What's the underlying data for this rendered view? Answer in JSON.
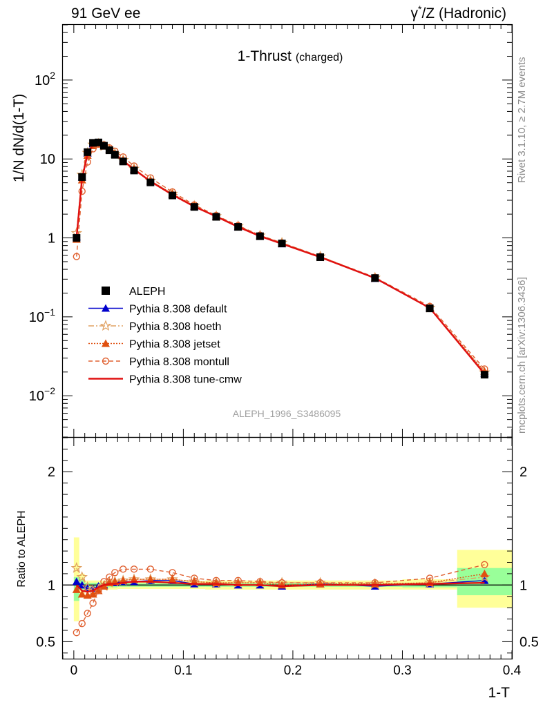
{
  "header": {
    "left": "91 GeV ee",
    "right_prefix": "γ",
    "right_sup": "*",
    "right_suffix": "/Z (Hadronic)"
  },
  "side_labels": {
    "top": "Rivet 3.1.10, ≥ 2.7M events",
    "bottom": "mcplots.cern.ch [arXiv:1306.3436]"
  },
  "chart_data": {
    "type": "line",
    "title": "1-Thrust",
    "title_suffix": "(charged)",
    "analysis_id": "ALEPH_1996_S3486095",
    "xlabel": "1-T",
    "ylabel": "1/N dN/d(1-T)",
    "ratio_ylabel": "Ratio to ALEPH",
    "xlim": [
      -0.01,
      0.4
    ],
    "ylim": [
      0.003,
      500
    ],
    "ylog": true,
    "ratio_ylim": [
      0.35,
      2.3
    ],
    "x_ticks": [
      "0",
      "0.1",
      "0.2",
      "0.3",
      "0.4"
    ],
    "y_ticks": [
      {
        "value": 0.01,
        "base": "10",
        "exp": "−2"
      },
      {
        "value": 0.1,
        "base": "10",
        "exp": "−1"
      },
      {
        "value": 1,
        "base": "1",
        "exp": ""
      },
      {
        "value": 10,
        "base": "10",
        "exp": ""
      },
      {
        "value": 100,
        "base": "10",
        "exp": "2"
      }
    ],
    "ratio_ticks": [
      "0.5",
      "1",
      "2"
    ],
    "legend_position": "middle-left",
    "x": [
      0.0025,
      0.0075,
      0.0125,
      0.0175,
      0.0225,
      0.0275,
      0.0325,
      0.0375,
      0.045,
      0.055,
      0.07,
      0.09,
      0.11,
      0.13,
      0.15,
      0.17,
      0.19,
      0.225,
      0.275,
      0.325,
      0.375
    ],
    "bands": [
      {
        "x0": 0.0,
        "x1": 0.005,
        "green": [
          0.86,
          1.07
        ],
        "yellow": [
          0.68,
          1.42
        ]
      },
      {
        "x0": 0.005,
        "x1": 0.01,
        "green": [
          0.96,
          1.05
        ],
        "yellow": [
          0.92,
          1.1
        ]
      },
      {
        "x0": 0.01,
        "x1": 0.04,
        "green": [
          0.98,
          1.02
        ],
        "yellow": [
          0.96,
          1.04
        ]
      },
      {
        "x0": 0.04,
        "x1": 0.12,
        "green": [
          0.985,
          1.015
        ],
        "yellow": [
          0.965,
          1.035
        ]
      },
      {
        "x0": 0.12,
        "x1": 0.3,
        "green": [
          0.985,
          1.015
        ],
        "yellow": [
          0.96,
          1.04
        ]
      },
      {
        "x0": 0.3,
        "x1": 0.35,
        "green": [
          0.98,
          1.02
        ],
        "yellow": [
          0.96,
          1.05
        ]
      },
      {
        "x0": 0.35,
        "x1": 0.4,
        "green": [
          0.91,
          1.15
        ],
        "yellow": [
          0.8,
          1.31
        ]
      }
    ],
    "series": [
      {
        "name": "ALEPH",
        "kind": "data",
        "color": "#000000",
        "values": [
          1.0,
          5.9,
          12.2,
          16.0,
          16.2,
          14.7,
          12.9,
          11.3,
          9.3,
          7.15,
          5.05,
          3.45,
          2.47,
          1.85,
          1.38,
          1.05,
          0.85,
          0.57,
          0.31,
          0.128,
          0.0185
        ]
      },
      {
        "name": "Pythia 8.308 default",
        "kind": "mc",
        "color": "#0000cc",
        "dash": "",
        "marker": "triangle-filled",
        "ratio": [
          1.03,
          1.0,
          0.97,
          0.97,
          0.99,
          1.0,
          1.02,
          1.02,
          1.03,
          1.03,
          1.04,
          1.04,
          1.01,
          1.01,
          1.0,
          1.0,
          0.99,
          1.01,
          0.99,
          1.01,
          1.04
        ]
      },
      {
        "name": "Pythia 8.308 hoeth",
        "kind": "mc",
        "color": "#e0a060",
        "dash": "8,3,2,3",
        "marker": "star-open",
        "ratio": [
          1.15,
          1.07,
          0.98,
          0.95,
          0.96,
          0.99,
          1.02,
          1.03,
          1.04,
          1.05,
          1.05,
          1.05,
          1.03,
          1.02,
          1.02,
          1.02,
          1.02,
          1.02,
          1.01,
          1.02,
          1.07
        ]
      },
      {
        "name": "Pythia 8.308 jetset",
        "kind": "mc",
        "color": "#e05010",
        "dash": "2,2",
        "marker": "triangle-filled",
        "ratio": [
          0.96,
          0.92,
          0.91,
          0.92,
          0.95,
          0.99,
          1.02,
          1.03,
          1.04,
          1.05,
          1.05,
          1.05,
          1.03,
          1.02,
          1.02,
          1.02,
          1.0,
          1.01,
          1.01,
          1.02,
          1.1
        ]
      },
      {
        "name": "Pythia 8.308 montull",
        "kind": "mc",
        "color": "#e06030",
        "dash": "6,4",
        "marker": "circle-open",
        "ratio": [
          0.58,
          0.66,
          0.75,
          0.84,
          0.95,
          1.03,
          1.07,
          1.11,
          1.14,
          1.14,
          1.14,
          1.11,
          1.06,
          1.04,
          1.04,
          1.03,
          1.02,
          1.02,
          1.02,
          1.06,
          1.18
        ]
      },
      {
        "name": "Pythia 8.308 tune-cmw",
        "kind": "mc",
        "color": "#e01010",
        "dash": "",
        "marker": "none",
        "ratio": [
          1.0,
          0.95,
          0.94,
          0.95,
          0.98,
          1.0,
          1.01,
          1.01,
          1.02,
          1.03,
          1.03,
          1.02,
          1.01,
          1.01,
          1.0,
          1.0,
          0.99,
          1.0,
          1.0,
          1.01,
          1.02
        ]
      }
    ]
  }
}
